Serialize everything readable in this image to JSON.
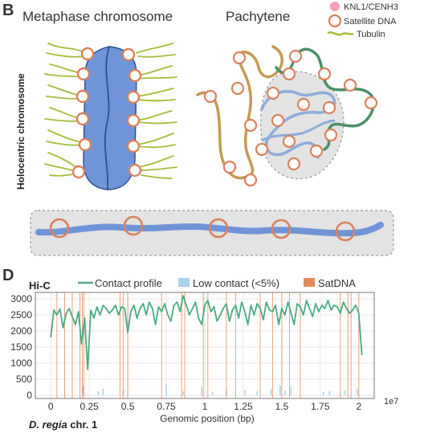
{
  "panel_b": {
    "label": "B",
    "metaphase_title": "Metaphase chromosome",
    "pachytene_title": "Pachytene",
    "side_label": "Holocentric chromosome",
    "legend": [
      {
        "label": "KNL1/CENH3",
        "symbol": "filled-circle",
        "color": "#f2a2b6"
      },
      {
        "label": "Satellite DNA",
        "symbol": "open-circle",
        "color": "#d9825c"
      },
      {
        "label": "Tubulin",
        "symbol": "squiggle",
        "color": "#9db93a"
      }
    ],
    "colors": {
      "chromatid": "#6f94d8",
      "chromatid_edge": "#2c4f8c",
      "satellite": "#d9825c",
      "tubulin": "#a4bd3a",
      "strand_tan": "#c49a52",
      "strand_green": "#4a9068",
      "strand_blue": "#8eaddc",
      "nucleolus": "#e3e3e3"
    }
  },
  "panel_d": {
    "label": "D",
    "caption_species": "D. regia",
    "caption_rest": " chr. 1",
    "chart_data": {
      "type": "line",
      "title": "Hi-C",
      "xlabel": "Genomic position (bp)",
      "ylabel": "",
      "x_exponent_label": "1e7",
      "x_ticks": [
        "0",
        "0.25",
        "0.5",
        "0.75",
        "1",
        "1.25",
        "1.5",
        "1.75",
        "2"
      ],
      "y_ticks": [
        "0",
        "500",
        "1000",
        "1500",
        "2000",
        "2500",
        "3000"
      ],
      "xlim": [
        -0.1,
        2.1
      ],
      "ylim": [
        -100,
        3200
      ],
      "grid": true,
      "legend_position": "top",
      "legend": [
        {
          "name": "Contact profile",
          "kind": "line",
          "color": "#4aab84"
        },
        {
          "name": "Low contact (<5%)",
          "kind": "patch",
          "color": "#a8d4ef"
        },
        {
          "name": "SatDNA",
          "kind": "patch",
          "color": "#e58a5c"
        }
      ],
      "series": [
        {
          "name": "Contact profile",
          "color": "#4aab84",
          "x": [
            0.0,
            0.02,
            0.04,
            0.06,
            0.08,
            0.1,
            0.12,
            0.14,
            0.16,
            0.18,
            0.2,
            0.22,
            0.24,
            0.26,
            0.28,
            0.3,
            0.32,
            0.34,
            0.36,
            0.38,
            0.4,
            0.42,
            0.44,
            0.46,
            0.48,
            0.5,
            0.52,
            0.54,
            0.56,
            0.58,
            0.6,
            0.62,
            0.64,
            0.66,
            0.68,
            0.7,
            0.72,
            0.74,
            0.76,
            0.78,
            0.8,
            0.82,
            0.84,
            0.86,
            0.88,
            0.9,
            0.92,
            0.94,
            0.96,
            0.98,
            1.0,
            1.02,
            1.04,
            1.06,
            1.08,
            1.1,
            1.12,
            1.14,
            1.16,
            1.18,
            1.2,
            1.22,
            1.24,
            1.26,
            1.28,
            1.3,
            1.32,
            1.34,
            1.36,
            1.38,
            1.4,
            1.42,
            1.44,
            1.46,
            1.48,
            1.5,
            1.52,
            1.54,
            1.56,
            1.58,
            1.6,
            1.62,
            1.64,
            1.66,
            1.68,
            1.7,
            1.72,
            1.74,
            1.76,
            1.78,
            1.8,
            1.82,
            1.84,
            1.86,
            1.88,
            1.9,
            1.92,
            1.94,
            1.96,
            1.98,
            2.0,
            2.02
          ],
          "y": [
            1800,
            2650,
            2500,
            2680,
            2100,
            2550,
            2700,
            2450,
            2200,
            2600,
            1600,
            2400,
            800,
            2650,
            2400,
            2750,
            2500,
            2800,
            2700,
            2550,
            2650,
            2800,
            2500,
            2750,
            2700,
            1950,
            2600,
            2800,
            2400,
            2700,
            2850,
            2500,
            2900,
            2700,
            2200,
            2750,
            2600,
            2850,
            2500,
            2300,
            2800,
            2900,
            2600,
            3100,
            2800,
            2500,
            2700,
            2900,
            2400,
            2200,
            2800,
            2950,
            2600,
            2750,
            2300,
            2500,
            2700,
            2850,
            2300,
            2650,
            2800,
            2400,
            2900,
            2600,
            2200,
            2800,
            2500,
            2850,
            2700,
            2350,
            2900,
            2650,
            2600,
            2800,
            2200,
            2700,
            2500,
            2900,
            2550,
            2200,
            2850,
            2750,
            2500,
            2950,
            2700,
            2450,
            2850,
            2600,
            2800,
            2700,
            2950,
            2650,
            2800,
            2750,
            2550,
            2900,
            2700,
            2550,
            2650,
            2800,
            2550,
            1250
          ]
        }
      ],
      "satdna_positions": [
        0.04,
        0.09,
        0.14,
        0.19,
        0.205,
        0.215,
        0.45,
        0.47,
        0.5,
        0.72,
        0.85,
        0.87,
        0.99,
        1.02,
        1.14,
        1.2,
        1.36,
        1.44,
        1.5,
        1.55,
        1.62,
        1.88,
        1.93,
        1.95,
        2.0
      ],
      "low_contact_positions": [
        0.21,
        0.31,
        0.34,
        0.47,
        0.75,
        0.86,
        0.98,
        1.05,
        1.14,
        1.26,
        1.34,
        1.43,
        1.49,
        1.52,
        1.56,
        1.77,
        1.81,
        1.91,
        1.99
      ],
      "low_contact_heights": [
        300,
        120,
        200,
        150,
        350,
        120,
        250,
        100,
        180,
        150,
        120,
        200,
        300,
        150,
        250,
        100,
        130,
        160,
        200
      ]
    }
  }
}
